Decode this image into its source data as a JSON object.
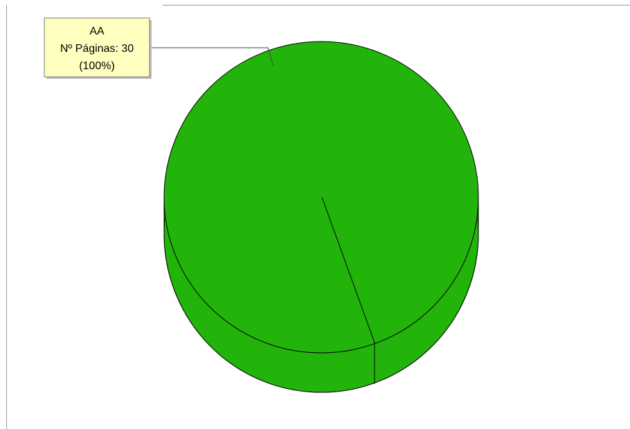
{
  "chart_data": {
    "type": "pie",
    "style": "3d",
    "slices": [
      {
        "label": "AA",
        "value": 30,
        "percent": 100,
        "color": "#22b40b"
      }
    ],
    "data_label": {
      "lines": [
        "AA",
        "Nº Páginas: 30",
        "(100%)"
      ],
      "background": "#ffffc0"
    }
  }
}
